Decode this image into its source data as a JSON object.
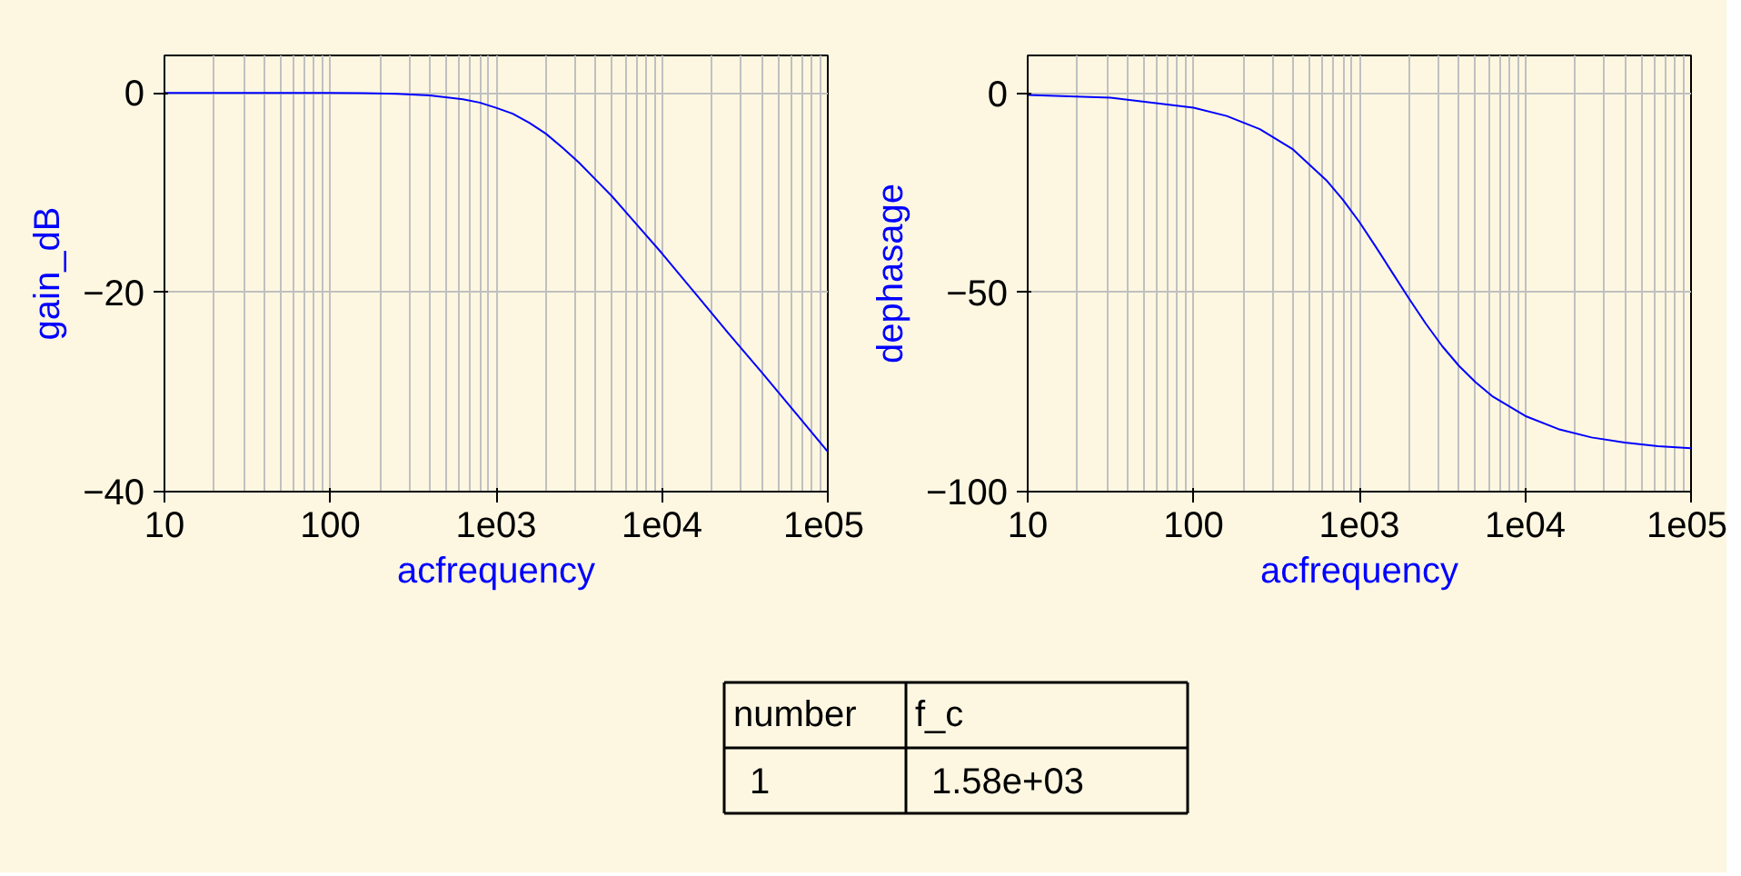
{
  "chart_data": [
    {
      "type": "line",
      "xlabel": "acfrequency",
      "ylabel": "gain_dB",
      "log": "x",
      "grid": true,
      "x": [
        10,
        31.6,
        100,
        158.5,
        251.2,
        398.1,
        631,
        794.3,
        1000,
        1258.9,
        1584.9,
        1995.3,
        2511.9,
        3162.3,
        3981.1,
        5011.9,
        6309.6,
        10000,
        15848.9,
        25118.9,
        39810.7,
        63095.7,
        100000
      ],
      "series": [
        {
          "color": "#0000ff",
          "values": [
            0,
            0,
            0,
            -0.04,
            -0.11,
            -0.27,
            -0.64,
            -0.98,
            -1.5,
            -2.1,
            -3.0,
            -4.1,
            -5.5,
            -7.0,
            -8.7,
            -10.4,
            -12.3,
            -16.1,
            -20.1,
            -24.1,
            -28.0,
            -32.0,
            -36.0
          ]
        }
      ],
      "xlim": [
        10,
        100000
      ],
      "ylim": [
        -40,
        3.75
      ],
      "xticks": [
        {
          "value": 10,
          "label": "10"
        },
        {
          "value": 100,
          "label": "100"
        },
        {
          "value": 1000,
          "label": "1e03"
        },
        {
          "value": 10000,
          "label": "1e04"
        },
        {
          "value": 100000,
          "label": "1e05"
        }
      ],
      "yticks": [
        0,
        -20,
        -40
      ]
    },
    {
      "type": "line",
      "xlabel": "acfrequency",
      "ylabel": "dephasage",
      "log": "x",
      "grid": true,
      "x": [
        10,
        31.6,
        100,
        158.5,
        251.2,
        398.1,
        631,
        794.3,
        1000,
        1258.9,
        1584.9,
        1995.3,
        2511.9,
        3162.3,
        3981.1,
        5011.9,
        6309.6,
        10000,
        15848.9,
        25118.9,
        39810.7,
        63095.7,
        100000
      ],
      "series": [
        {
          "color": "#0000ff",
          "values": [
            -0.4,
            -1.1,
            -3.6,
            -5.7,
            -9.0,
            -14.1,
            -21.8,
            -26.7,
            -32.3,
            -38.6,
            -45.1,
            -51.6,
            -57.8,
            -63.5,
            -68.4,
            -72.5,
            -76.0,
            -81.0,
            -84.3,
            -86.4,
            -87.7,
            -88.6,
            -89.1
          ]
        }
      ],
      "xlim": [
        10,
        100000
      ],
      "ylim": [
        -100,
        9.5
      ],
      "xticks": [
        {
          "value": 10,
          "label": "10"
        },
        {
          "value": 100,
          "label": "100"
        },
        {
          "value": 1000,
          "label": "1e03"
        },
        {
          "value": 10000,
          "label": "1e04"
        },
        {
          "value": 100000,
          "label": "1e05"
        }
      ],
      "yticks": [
        0,
        -50,
        -100
      ]
    },
    {
      "type": "other",
      "annotations": [
        "number",
        "f_c",
        "1",
        "1.58e+03"
      ]
    }
  ]
}
